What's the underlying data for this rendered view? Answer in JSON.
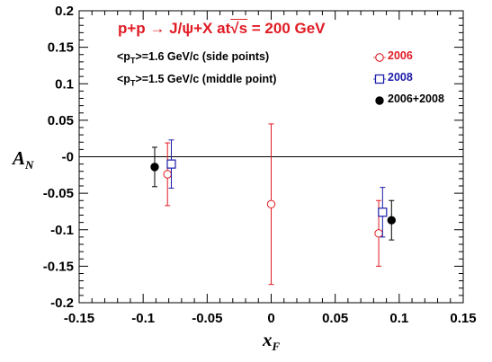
{
  "chart_data": {
    "type": "scatter",
    "title_prefix": "p+p → J/ψ+X  at",
    "title_root": "√",
    "title_s": "s",
    "title_suffix": " = 200 GeV",
    "notes": [
      {
        "pre": "<p",
        "sub": "T",
        "post": ">=1.6 GeV/c (side points)"
      },
      {
        "pre": "<p",
        "sub": "T",
        "post": ">=1.5 GeV/c (middle point)"
      }
    ],
    "xlabel_main": "x",
    "xlabel_sub": "F",
    "ylabel_main": "A",
    "ylabel_sub": "N",
    "xlim": [
      -0.15,
      0.15
    ],
    "ylim": [
      -0.2,
      0.2
    ],
    "xticks": [
      -0.15,
      -0.1,
      -0.05,
      0,
      0.05,
      0.1,
      0.15
    ],
    "xtick_labels": [
      "-0.15",
      "-0.1",
      "-0.05",
      "0",
      "0.05",
      "0.1",
      "0.15"
    ],
    "yticks": [
      -0.2,
      -0.15,
      -0.1,
      -0.05,
      0,
      0.05,
      0.1,
      0.15,
      0.2
    ],
    "ytick_labels": [
      "-0.2",
      "-0.15",
      "-0.1",
      "-0.05",
      "-0",
      "0.05",
      "0.1",
      "0.15",
      "0.2"
    ],
    "zero_line": true,
    "legend_placement": "top-right",
    "series": [
      {
        "name": "2006",
        "color": "#e01b24",
        "marker": "open-circle",
        "points": [
          {
            "x": -0.081,
            "y": -0.024,
            "err": 0.043
          },
          {
            "x": 0.0,
            "y": -0.065,
            "err": 0.11
          },
          {
            "x": 0.084,
            "y": -0.105,
            "err": 0.045
          }
        ]
      },
      {
        "name": "2008",
        "color": "#1c1ca8",
        "marker": "open-square",
        "points": [
          {
            "x": -0.078,
            "y": -0.01,
            "err": 0.033
          },
          {
            "x": 0.087,
            "y": -0.076,
            "err": 0.034
          }
        ]
      },
      {
        "name": "2006+2008",
        "color": "#000000",
        "marker": "filled-circle",
        "points": [
          {
            "x": -0.091,
            "y": -0.014,
            "err": 0.027
          },
          {
            "x": 0.094,
            "y": -0.087,
            "err": 0.027
          }
        ]
      }
    ]
  }
}
